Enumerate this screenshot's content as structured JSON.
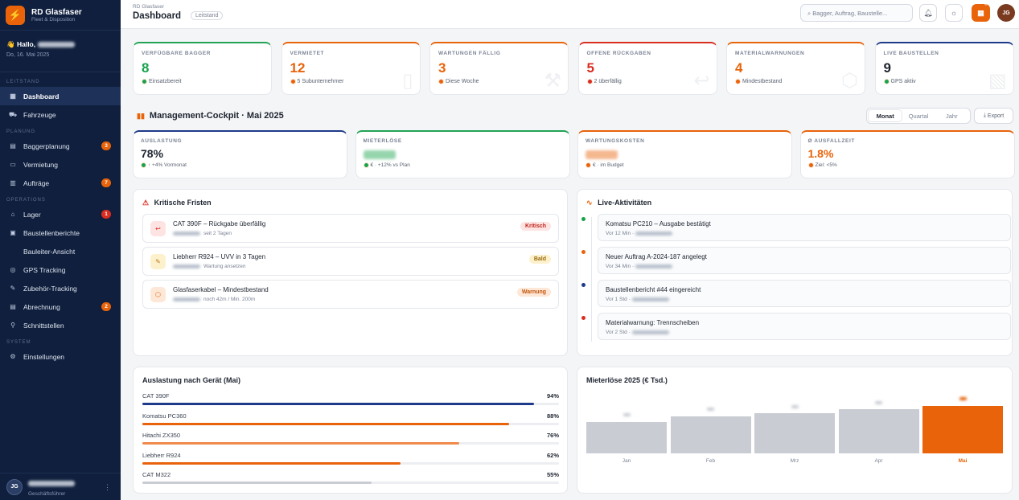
{
  "app": {
    "name": "RD Glasfaser",
    "subtitle": "Fleet & Disposition"
  },
  "greeting": {
    "hello": "Hallo,",
    "date": "Do, 16. Mai 2025"
  },
  "sidebar": {
    "sections": {
      "leitstand": "LEITSTAND",
      "planung": "PLANUNG",
      "operations": "OPERATIONS",
      "system": "SYSTEM"
    },
    "items": {
      "dashboard": {
        "label": "Dashboard",
        "icon": "grid-icon"
      },
      "fahrzeuge": {
        "label": "Fahrzeuge",
        "icon": "truck-icon"
      },
      "baggerplanung": {
        "label": "Baggerplanung",
        "icon": "calendar-icon",
        "badge": "3"
      },
      "vermietung": {
        "label": "Vermietung",
        "icon": "document-icon"
      },
      "auftraege": {
        "label": "Aufträge",
        "icon": "clipboard-icon",
        "badge": "7"
      },
      "lager": {
        "label": "Lager",
        "icon": "warehouse-icon",
        "badge": "1"
      },
      "baustellenberichte": {
        "label": "Baustellenberichte",
        "icon": "report-icon"
      },
      "bauleiter": {
        "label": "Bauleiter-Ansicht"
      },
      "gps": {
        "label": "GPS Tracking",
        "icon": "pin-icon"
      },
      "zubehoer": {
        "label": "Zubehör-Tracking",
        "icon": "wrench-icon"
      },
      "abrechnung": {
        "label": "Abrechnung",
        "icon": "invoice-icon",
        "badge": "2"
      },
      "schnittstellen": {
        "label": "Schnittstellen",
        "icon": "plug-icon"
      },
      "einstellungen": {
        "label": "Einstellungen",
        "icon": "gear-icon"
      }
    }
  },
  "user": {
    "initials": "JG",
    "role": "Geschäftsführer"
  },
  "header": {
    "crumb": "RD Glasfaser",
    "title": "Dashboard",
    "pill": "Leitstand",
    "search_placeholder": "Bagger, Auftrag, Baustelle...",
    "qr_label": "QR",
    "avatar": "JG"
  },
  "kpis": [
    {
      "label": "VERFÜGBARE BAGGER",
      "value": "8",
      "sub": "Einsatzbereit",
      "color": "#16a34a",
      "top": "#22a355"
    },
    {
      "label": "VERMIETET",
      "value": "12",
      "sub": "5 Subunternehmer",
      "color": "#e8630a",
      "top": "#e8630a"
    },
    {
      "label": "WARTUNGEN FÄLLIG",
      "value": "3",
      "sub": "Diese Woche",
      "color": "#e8630a",
      "top": "#e8630a"
    },
    {
      "label": "OFFENE RÜCKGABEN",
      "value": "5",
      "sub": "2 überfällig",
      "color": "#d92d20",
      "top": "#d92d20"
    },
    {
      "label": "MATERIALWARNUNGEN",
      "value": "4",
      "sub": "Mindestbestand",
      "color": "#e8630a",
      "top": "#e8630a"
    },
    {
      "label": "LIVE BAUSTELLEN",
      "value": "9",
      "sub": "GPS aktiv",
      "color": "#1e2430",
      "top": "#1e3a8a"
    }
  ],
  "cockpit": {
    "title": "Management-Cockpit · Mai 2025",
    "tabs": [
      "Monat",
      "Quartal",
      "Jahr"
    ],
    "export": "Export"
  },
  "metrics": [
    {
      "label": "AUSLASTUNG",
      "value": "78%",
      "sub": "↑ +4% Vormonat",
      "color": "#1e2430",
      "top": "#1e3a8a"
    },
    {
      "label": "MIETERLÖSE",
      "value": "",
      "sub": "€ · +12% vs Plan",
      "color": "#16a34a",
      "top": "#22a355"
    },
    {
      "label": "WARTUNGSKOSTEN",
      "value": "",
      "sub": "€ · im Budget",
      "color": "#e8630a",
      "top": "#e8630a"
    },
    {
      "label": "Ø AUSFALLZEIT",
      "value": "1.8%",
      "sub": "Ziel: <5%",
      "color": "#e8630a",
      "top": "#e8630a"
    }
  ],
  "fristen": {
    "title": "Kritische Fristen",
    "items": [
      {
        "title": "CAT 390F – Rückgabe überfällig",
        "sub": "seit 2 Tagen",
        "tag": "Kritisch"
      },
      {
        "title": "Liebherr R924 – UVV in 3 Tagen",
        "sub": "Wartung ansetzen",
        "tag": "Bald"
      },
      {
        "title": "Glasfaserkabel – Mindestbestand",
        "sub": "noch 42m / Min. 200m",
        "tag": "Warnung"
      }
    ]
  },
  "activities": {
    "title": "Live-Aktivitäten",
    "items": [
      {
        "title": "Komatsu PC210 – Ausgabe bestätigt",
        "time": "Vor 12 Min"
      },
      {
        "title": "Neuer Auftrag A-2024-187 angelegt",
        "time": "Vor 34 Min"
      },
      {
        "title": "Baustellenbericht #44 eingereicht",
        "time": "Vor 1 Std"
      },
      {
        "title": "Materialwarnung: Trennscheiben",
        "time": "Vor 2 Std"
      }
    ]
  },
  "utilization": {
    "title": "Auslastung nach Gerät (Mai)",
    "items": [
      {
        "name": "CAT 390F",
        "label": "94%",
        "value": 94,
        "color": "#1e3a8a"
      },
      {
        "name": "Komatsu PC360",
        "label": "88%",
        "value": 88,
        "color": "#e8630a"
      },
      {
        "name": "Hitachi ZX350",
        "label": "76%",
        "value": 76,
        "color": "#f08a4b"
      },
      {
        "name": "Liebherr R924",
        "label": "62%",
        "value": 62,
        "color": "#e8630a"
      },
      {
        "name": "CAT M322",
        "label": "55%",
        "value": 55,
        "color": "#c9ccd3"
      }
    ]
  },
  "chart_data": {
    "type": "bar",
    "title": "Mieterlöse 2025 (€ Tsd.)",
    "categories": [
      "Jan",
      "Feb",
      "Mrz",
      "Apr",
      "Mai"
    ],
    "values": [
      38,
      45,
      48,
      53,
      57
    ],
    "highlight": "Mai",
    "colors": {
      "default": "#c9ccd3",
      "highlight": "#e8630a"
    }
  }
}
